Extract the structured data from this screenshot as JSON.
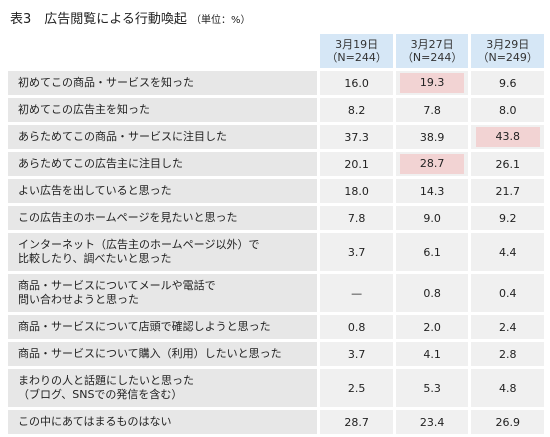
{
  "title": "表3　広告閲覧による行動喚起",
  "unit": "（単位：%）",
  "highlight_color": "#f2d3d3",
  "header_color": "#d6e7f6",
  "columns": [
    {
      "date": "3月19日",
      "n": "（N=244）"
    },
    {
      "date": "3月27日",
      "n": "（N=244）"
    },
    {
      "date": "3月29日",
      "n": "（N=249）"
    }
  ],
  "rows": [
    {
      "label": [
        "初めてこの商品・サービスを知った"
      ],
      "values": [
        "16.0",
        "19.3",
        "9.6"
      ],
      "highlight": [
        false,
        true,
        false
      ]
    },
    {
      "label": [
        "初めてこの広告主を知った"
      ],
      "values": [
        "8.2",
        "7.8",
        "8.0"
      ],
      "highlight": [
        false,
        false,
        false
      ]
    },
    {
      "label": [
        "あらためてこの商品・サービスに注目した"
      ],
      "values": [
        "37.3",
        "38.9",
        "43.8"
      ],
      "highlight": [
        false,
        false,
        true
      ]
    },
    {
      "label": [
        "あらためてこの広告主に注目した"
      ],
      "values": [
        "20.1",
        "28.7",
        "26.1"
      ],
      "highlight": [
        false,
        true,
        false
      ]
    },
    {
      "label": [
        "よい広告を出していると思った"
      ],
      "values": [
        "18.0",
        "14.3",
        "21.7"
      ],
      "highlight": [
        false,
        false,
        false
      ]
    },
    {
      "label": [
        "この広告主のホームページを見たいと思った"
      ],
      "values": [
        "7.8",
        "9.0",
        "9.2"
      ],
      "highlight": [
        false,
        false,
        false
      ]
    },
    {
      "label": [
        "インターネット（広告主のホームページ以外）で",
        "比較したり、調べたいと思った"
      ],
      "values": [
        "3.7",
        "6.1",
        "4.4"
      ],
      "highlight": [
        false,
        false,
        false
      ]
    },
    {
      "label": [
        "商品・サービスについてメールや電話で",
        "問い合わせようと思った"
      ],
      "values": [
        "—",
        "0.8",
        "0.4"
      ],
      "highlight": [
        false,
        false,
        false
      ]
    },
    {
      "label": [
        "商品・サービスについて店頭で確認しようと思った"
      ],
      "values": [
        "0.8",
        "2.0",
        "2.4"
      ],
      "highlight": [
        false,
        false,
        false
      ]
    },
    {
      "label": [
        "商品・サービスについて購入（利用）したいと思った"
      ],
      "values": [
        "3.7",
        "4.1",
        "2.8"
      ],
      "highlight": [
        false,
        false,
        false
      ]
    },
    {
      "label": [
        "まわりの人と話題にしたいと思った",
        "（ブログ、SNSでの発信を含む）"
      ],
      "values": [
        "2.5",
        "5.3",
        "4.8"
      ],
      "highlight": [
        false,
        false,
        false
      ]
    },
    {
      "label": [
        "この中にあてはまるものはない"
      ],
      "values": [
        "28.7",
        "23.4",
        "26.9"
      ],
      "highlight": [
        false,
        false,
        false
      ]
    }
  ]
}
